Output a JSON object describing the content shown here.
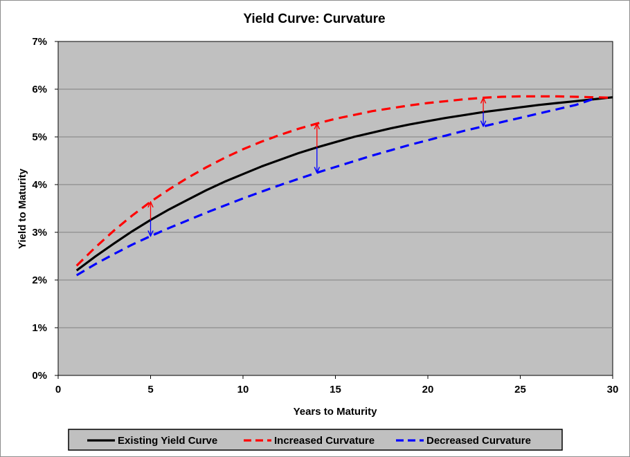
{
  "chart_data": {
    "type": "line",
    "title": "Yield Curve: Curvature",
    "xlabel": "Years to Maturity",
    "ylabel": "Yield to Maturity",
    "xlim": [
      0,
      30
    ],
    "ylim": [
      0,
      7
    ],
    "x_ticks": [
      "0",
      "5",
      "10",
      "15",
      "20",
      "25",
      "30"
    ],
    "y_ticks": [
      "0%",
      "1%",
      "2%",
      "3%",
      "4%",
      "5%",
      "6%",
      "7%"
    ],
    "grid": true,
    "legend_position": "bottom",
    "series": [
      {
        "name": "Existing Yield Curve",
        "color": "#000000",
        "style": "solid",
        "x": [
          1,
          2,
          3,
          4,
          5,
          6,
          7,
          8,
          9,
          10,
          11,
          12,
          13,
          14,
          15,
          16,
          17,
          18,
          19,
          20,
          21,
          22,
          23,
          24,
          25,
          26,
          27,
          28,
          29,
          30
        ],
        "y": [
          2.2,
          2.49,
          2.76,
          3.02,
          3.26,
          3.48,
          3.68,
          3.88,
          4.06,
          4.22,
          4.38,
          4.52,
          4.66,
          4.78,
          4.89,
          5.0,
          5.09,
          5.18,
          5.26,
          5.33,
          5.4,
          5.46,
          5.52,
          5.57,
          5.62,
          5.67,
          5.71,
          5.75,
          5.79,
          5.83
        ]
      },
      {
        "name": "Increased Curvature",
        "color": "#ff0000",
        "style": "dashed",
        "x": [
          1,
          2,
          3,
          4,
          5,
          6,
          7,
          8,
          9,
          10,
          11,
          12,
          13,
          14,
          15,
          16,
          17,
          18,
          19,
          20,
          21,
          22,
          23,
          24,
          25,
          26,
          27,
          28,
          29,
          30
        ],
        "y": [
          2.3,
          2.68,
          3.03,
          3.35,
          3.64,
          3.9,
          4.14,
          4.36,
          4.56,
          4.74,
          4.9,
          5.04,
          5.17,
          5.28,
          5.38,
          5.46,
          5.54,
          5.6,
          5.66,
          5.71,
          5.75,
          5.79,
          5.82,
          5.84,
          5.85,
          5.85,
          5.85,
          5.84,
          5.83,
          5.82
        ]
      },
      {
        "name": "Decreased Curvature",
        "color": "#0000ff",
        "style": "dashed",
        "x": [
          1,
          2,
          3,
          4,
          5,
          6,
          7,
          8,
          9,
          10,
          11,
          12,
          13,
          14,
          15,
          16,
          17,
          18,
          19,
          20,
          21,
          22,
          23,
          24,
          25,
          26,
          27,
          28,
          29
        ],
        "y": [
          2.1,
          2.33,
          2.54,
          2.74,
          2.92,
          3.09,
          3.25,
          3.41,
          3.56,
          3.71,
          3.85,
          3.99,
          4.12,
          4.25,
          4.37,
          4.49,
          4.61,
          4.72,
          4.83,
          4.93,
          5.03,
          5.13,
          5.22,
          5.31,
          5.4,
          5.49,
          5.58,
          5.67,
          5.8
        ]
      }
    ],
    "arrows": [
      {
        "x": 5,
        "from": 3.26,
        "to": 3.64,
        "color": "#ff0000"
      },
      {
        "x": 5,
        "from": 3.26,
        "to": 2.92,
        "color": "#0000ff"
      },
      {
        "x": 14,
        "from": 4.78,
        "to": 5.28,
        "color": "#ff0000"
      },
      {
        "x": 14,
        "from": 4.78,
        "to": 4.25,
        "color": "#0000ff"
      },
      {
        "x": 23,
        "from": 5.52,
        "to": 5.82,
        "color": "#ff0000"
      },
      {
        "x": 23,
        "from": 5.52,
        "to": 5.22,
        "color": "#0000ff"
      }
    ]
  }
}
